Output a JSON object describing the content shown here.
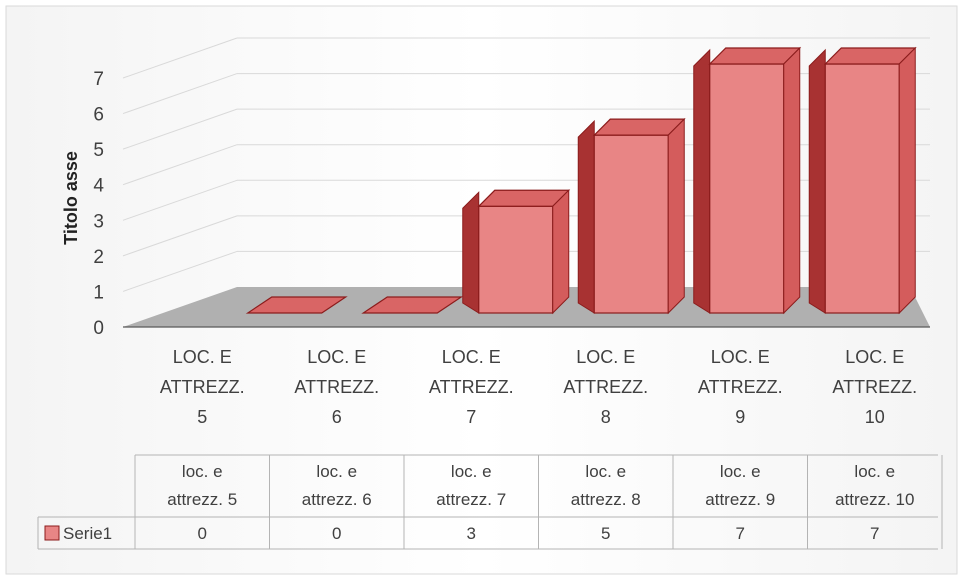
{
  "chart_data": {
    "type": "bar",
    "categories_axis": [
      "LOC. E ATTREZZ. 5",
      "LOC. E ATTREZZ. 6",
      "LOC. E ATTREZZ. 7",
      "LOC. E ATTREZZ. 8",
      "LOC. E ATTREZZ. 9",
      "LOC. E ATTREZZ. 10"
    ],
    "categories_table": [
      "loc. e attrezz. 5",
      "loc. e attrezz. 6",
      "loc. e attrezz. 7",
      "loc. e attrezz. 8",
      "loc. e attrezz. 9",
      "loc. e attrezz. 10"
    ],
    "series": [
      {
        "name": "Serie1",
        "values": [
          0,
          0,
          3,
          5,
          7,
          7
        ]
      }
    ],
    "ylabel": "Titolo asse",
    "ylim": [
      0,
      7
    ],
    "yticks": [
      "0",
      "1",
      "2",
      "3",
      "4",
      "5",
      "6",
      "7"
    ],
    "grid": true,
    "style": "3d-column with data table",
    "colors": {
      "bar_front": "#e88585",
      "bar_side": "#a83232",
      "bar_top": "#d96565",
      "bar_edge": "#8b1c1c",
      "floor": "#b0b0b0"
    }
  }
}
